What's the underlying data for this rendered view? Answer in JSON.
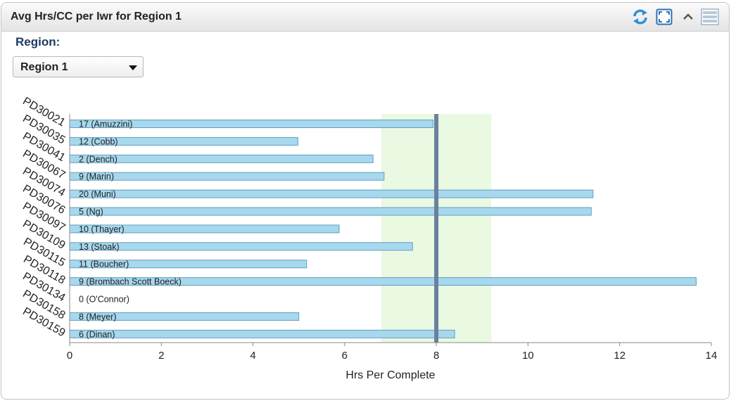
{
  "panel": {
    "title": "Avg Hrs/CC per Iwr for Region 1",
    "icons": [
      "refresh-icon",
      "fullscreen-icon",
      "collapse-icon",
      "menu-icon"
    ]
  },
  "filter": {
    "label": "Region:",
    "selected": "Region 1"
  },
  "chart_data": {
    "type": "bar",
    "orientation": "horizontal",
    "categories": [
      "PD30021",
      "PD30035",
      "PD30041",
      "PD30067",
      "PD30074",
      "PD30076",
      "PD30097",
      "PD30109",
      "PD30115",
      "PD30118",
      "PD30134",
      "PD30158",
      "PD30159"
    ],
    "bar_labels": [
      "17  (Amuzzini)",
      "12  (Cobb)",
      "2  (Dench)",
      "9  (Marin)",
      "20  (Muni)",
      "5  (Ng)",
      "10  (Thayer)",
      "13  (Stoak)",
      "11  (Boucher)",
      "9  (Brombach Scott Boeck)",
      "0  (O'Connor)",
      "8  (Meyer)",
      "6  (Dinan)"
    ],
    "values": [
      7.93,
      4.98,
      6.62,
      6.86,
      11.42,
      11.38,
      5.88,
      7.48,
      5.17,
      13.67,
      0,
      5.0,
      8.4
    ],
    "xlabel": "Hrs Per Complete",
    "xlim": [
      0,
      14
    ],
    "xticks": [
      0,
      2,
      4,
      6,
      8,
      10,
      12,
      14
    ],
    "target_line": 8,
    "target_band": [
      6.8,
      9.2
    ],
    "colors": {
      "bar_fill": "#a8d8ee",
      "bar_stroke": "#5f9fbd",
      "band": "#eaf9e2",
      "target": "#6b7f9e",
      "axis": "#888888",
      "text": "#222222"
    }
  }
}
